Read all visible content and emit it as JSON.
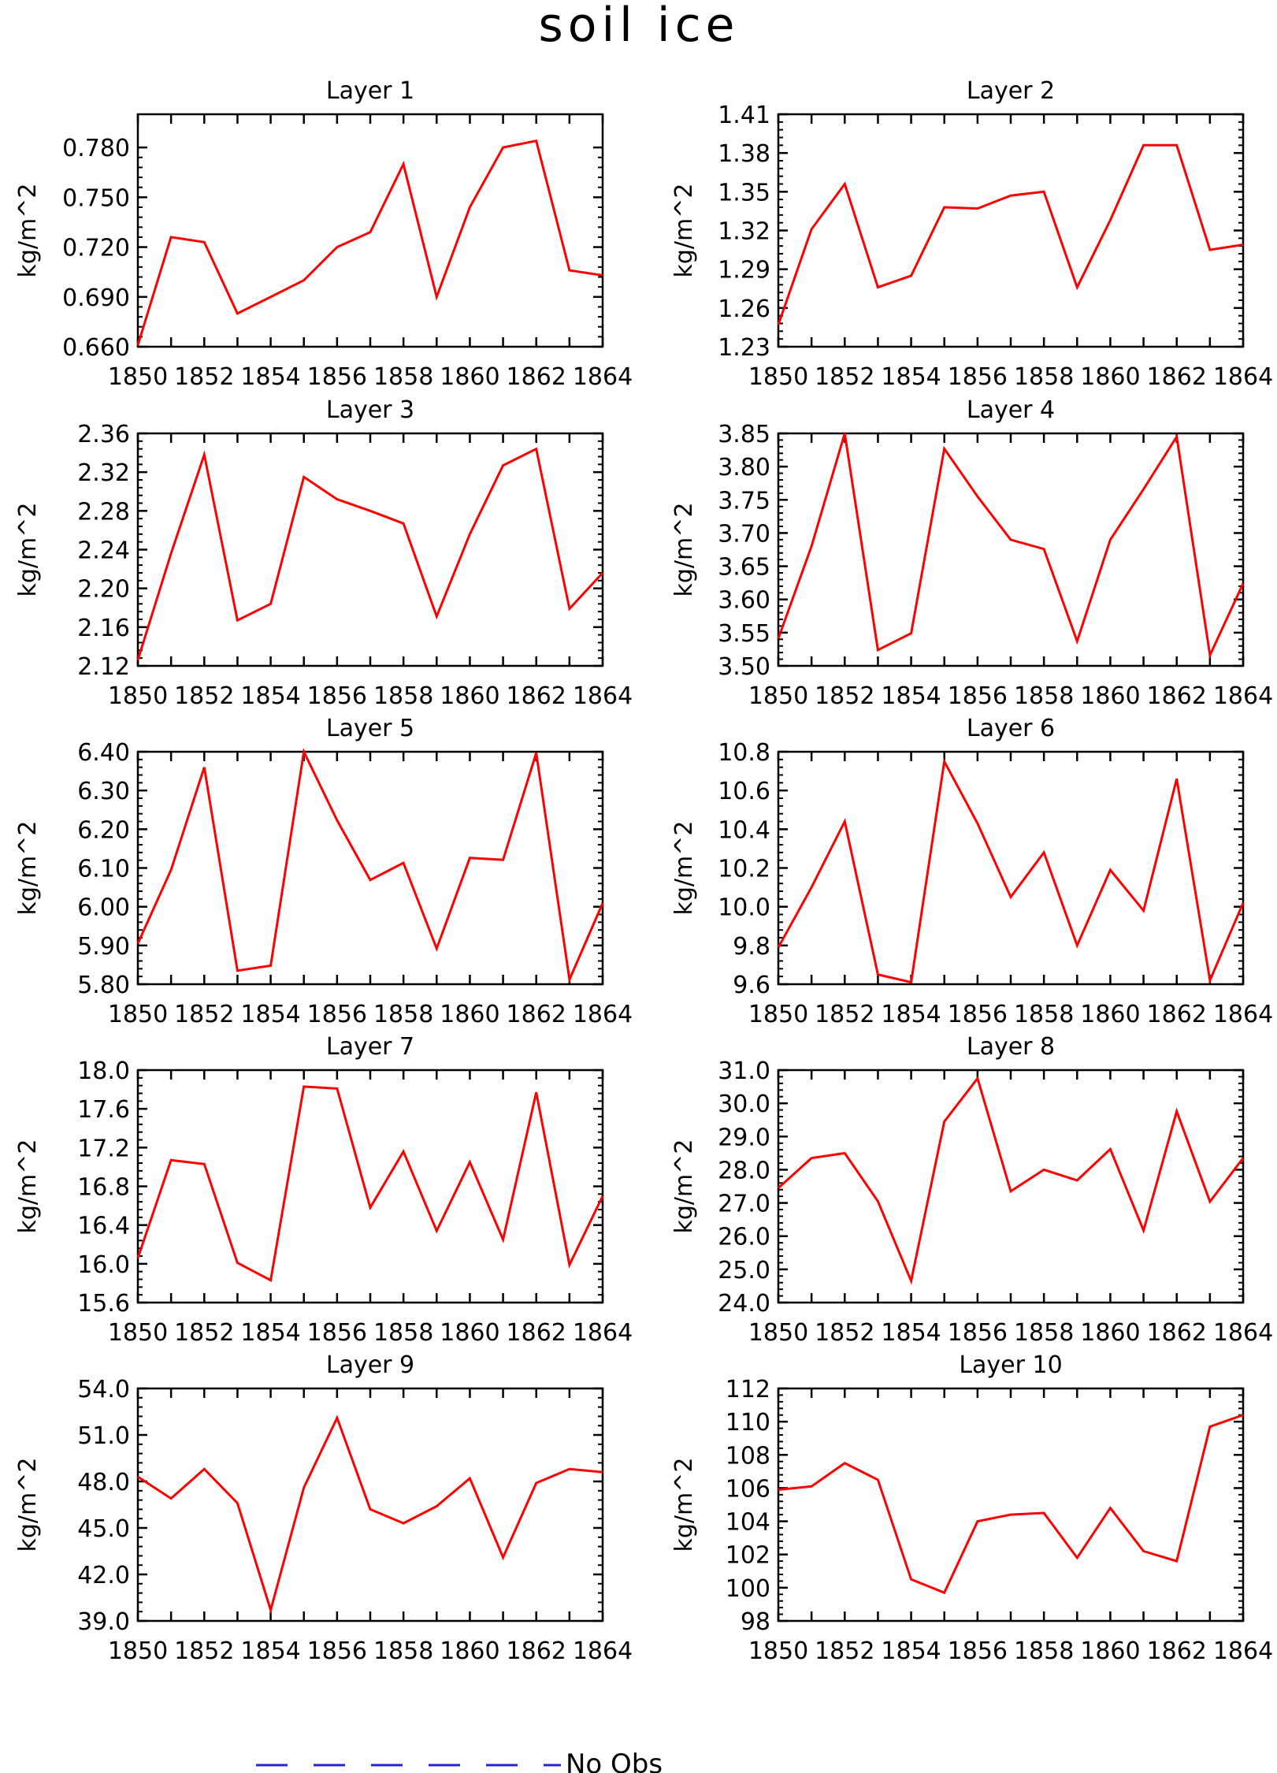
{
  "figure": {
    "title": "soil ice",
    "legend_label": "No Obs",
    "line_color": "#ff0000",
    "legend_color": "#2222dd"
  },
  "chart_data": [
    {
      "type": "line",
      "title": "Layer 1",
      "ylabel": "kg/m^2",
      "xlim": [
        1850,
        1864
      ],
      "ylim": [
        0.66,
        0.8
      ],
      "xticks": [
        "1850",
        "1852",
        "1854",
        "1856",
        "1858",
        "1860",
        "1862",
        "1864"
      ],
      "yticks": [
        "0.660",
        "0.690",
        "0.720",
        "0.750",
        "0.780"
      ],
      "x": [
        1850,
        1851,
        1852,
        1853,
        1854,
        1855,
        1856,
        1857,
        1858,
        1859,
        1860,
        1861,
        1862,
        1863,
        1864
      ],
      "values": [
        0.661,
        0.726,
        0.723,
        0.68,
        0.69,
        0.7,
        0.72,
        0.729,
        0.77,
        0.69,
        0.744,
        0.78,
        0.784,
        0.706,
        0.703
      ]
    },
    {
      "type": "line",
      "title": "Layer 2",
      "ylabel": "kg/m^2",
      "xlim": [
        1850,
        1864
      ],
      "ylim": [
        1.23,
        1.41
      ],
      "xticks": [
        "1850",
        "1852",
        "1854",
        "1856",
        "1858",
        "1860",
        "1862",
        "1864"
      ],
      "yticks": [
        "1.23",
        "1.26",
        "1.29",
        "1.32",
        "1.35",
        "1.38",
        "1.41"
      ],
      "x": [
        1850,
        1851,
        1852,
        1853,
        1854,
        1855,
        1856,
        1857,
        1858,
        1859,
        1860,
        1861,
        1862,
        1863,
        1864
      ],
      "values": [
        1.247,
        1.321,
        1.356,
        1.276,
        1.285,
        1.338,
        1.337,
        1.347,
        1.35,
        1.276,
        1.328,
        1.386,
        1.386,
        1.305,
        1.309
      ]
    },
    {
      "type": "line",
      "title": "Layer 3",
      "ylabel": "kg/m^2",
      "xlim": [
        1850,
        1864
      ],
      "ylim": [
        2.12,
        2.36
      ],
      "xticks": [
        "1850",
        "1852",
        "1854",
        "1856",
        "1858",
        "1860",
        "1862",
        "1864"
      ],
      "yticks": [
        "2.12",
        "2.16",
        "2.20",
        "2.24",
        "2.28",
        "2.32",
        "2.36"
      ],
      "x": [
        1850,
        1851,
        1852,
        1853,
        1854,
        1855,
        1856,
        1857,
        1858,
        1859,
        1860,
        1861,
        1862,
        1863,
        1864
      ],
      "values": [
        2.126,
        2.236,
        2.338,
        2.167,
        2.184,
        2.315,
        2.292,
        2.28,
        2.267,
        2.171,
        2.256,
        2.327,
        2.344,
        2.179,
        2.216
      ]
    },
    {
      "type": "line",
      "title": "Layer 4",
      "ylabel": "kg/m^2",
      "xlim": [
        1850,
        1864
      ],
      "ylim": [
        3.5,
        3.85
      ],
      "xticks": [
        "1850",
        "1852",
        "1854",
        "1856",
        "1858",
        "1860",
        "1862",
        "1864"
      ],
      "yticks": [
        "3.50",
        "3.55",
        "3.60",
        "3.65",
        "3.70",
        "3.75",
        "3.80",
        "3.85"
      ],
      "x": [
        1850,
        1851,
        1852,
        1853,
        1854,
        1855,
        1856,
        1857,
        1858,
        1859,
        1860,
        1861,
        1862,
        1863,
        1864
      ],
      "values": [
        3.541,
        3.68,
        3.85,
        3.524,
        3.549,
        3.827,
        3.755,
        3.69,
        3.676,
        3.537,
        3.69,
        3.766,
        3.845,
        3.516,
        3.624
      ]
    },
    {
      "type": "line",
      "title": "Layer 5",
      "ylabel": "kg/m^2",
      "xlim": [
        1850,
        1864
      ],
      "ylim": [
        5.8,
        6.4
      ],
      "xticks": [
        "1850",
        "1852",
        "1854",
        "1856",
        "1858",
        "1860",
        "1862",
        "1864"
      ],
      "yticks": [
        "5.80",
        "5.90",
        "6.00",
        "6.10",
        "6.20",
        "6.30",
        "6.40"
      ],
      "x": [
        1850,
        1851,
        1852,
        1853,
        1854,
        1855,
        1856,
        1857,
        1858,
        1859,
        1860,
        1861,
        1862,
        1863,
        1864
      ],
      "values": [
        5.905,
        6.095,
        6.36,
        5.835,
        5.848,
        6.4,
        6.223,
        6.069,
        6.113,
        5.892,
        6.126,
        6.121,
        6.397,
        5.812,
        6.009
      ]
    },
    {
      "type": "line",
      "title": "Layer 6",
      "ylabel": "kg/m^2",
      "xlim": [
        1850,
        1864
      ],
      "ylim": [
        9.6,
        10.8
      ],
      "xticks": [
        "1850",
        "1852",
        "1854",
        "1856",
        "1858",
        "1860",
        "1862",
        "1864"
      ],
      "yticks": [
        "9.6",
        "9.8",
        "10.0",
        "10.2",
        "10.4",
        "10.6",
        "10.8"
      ],
      "x": [
        1850,
        1851,
        1852,
        1853,
        1854,
        1855,
        1856,
        1857,
        1858,
        1859,
        1860,
        1861,
        1862,
        1863,
        1864
      ],
      "values": [
        9.79,
        10.1,
        10.44,
        9.65,
        9.61,
        10.75,
        10.43,
        10.05,
        10.28,
        9.8,
        10.19,
        9.98,
        10.66,
        9.62,
        10.02
      ]
    },
    {
      "type": "line",
      "title": "Layer 7",
      "ylabel": "kg/m^2",
      "xlim": [
        1850,
        1864
      ],
      "ylim": [
        15.6,
        18.0
      ],
      "xticks": [
        "1850",
        "1852",
        "1854",
        "1856",
        "1858",
        "1860",
        "1862",
        "1864"
      ],
      "yticks": [
        "15.6",
        "16.0",
        "16.4",
        "16.8",
        "17.2",
        "17.6",
        "18.0"
      ],
      "x": [
        1850,
        1851,
        1852,
        1853,
        1854,
        1855,
        1856,
        1857,
        1858,
        1859,
        1860,
        1861,
        1862,
        1863,
        1864
      ],
      "values": [
        16.06,
        17.07,
        17.03,
        16.01,
        15.83,
        17.83,
        17.81,
        16.58,
        17.16,
        16.34,
        17.05,
        16.25,
        17.77,
        15.99,
        16.7
      ]
    },
    {
      "type": "line",
      "title": "Layer 8",
      "ylabel": "kg/m^2",
      "xlim": [
        1850,
        1864
      ],
      "ylim": [
        24.0,
        31.0
      ],
      "xticks": [
        "1850",
        "1852",
        "1854",
        "1856",
        "1858",
        "1860",
        "1862",
        "1864"
      ],
      "yticks": [
        "24.0",
        "25.0",
        "26.0",
        "27.0",
        "28.0",
        "29.0",
        "30.0",
        "31.0"
      ],
      "x": [
        1850,
        1851,
        1852,
        1853,
        1854,
        1855,
        1856,
        1857,
        1858,
        1859,
        1860,
        1861,
        1862,
        1863,
        1864
      ],
      "values": [
        27.45,
        28.35,
        28.5,
        27.05,
        24.65,
        29.45,
        30.75,
        27.35,
        28.0,
        27.68,
        28.62,
        26.17,
        29.76,
        27.04,
        28.35
      ]
    },
    {
      "type": "line",
      "title": "Layer 9",
      "ylabel": "kg/m^2",
      "xlim": [
        1850,
        1864
      ],
      "ylim": [
        39.0,
        54.0
      ],
      "xticks": [
        "1850",
        "1852",
        "1854",
        "1856",
        "1858",
        "1860",
        "1862",
        "1864"
      ],
      "yticks": [
        "39.0",
        "42.0",
        "45.0",
        "48.0",
        "51.0",
        "54.0"
      ],
      "x": [
        1850,
        1851,
        1852,
        1853,
        1854,
        1855,
        1856,
        1857,
        1858,
        1859,
        1860,
        1861,
        1862,
        1863,
        1864
      ],
      "values": [
        48.3,
        46.9,
        48.8,
        46.6,
        39.7,
        47.6,
        52.1,
        46.2,
        45.3,
        46.4,
        48.2,
        43.1,
        47.9,
        48.8,
        48.6
      ]
    },
    {
      "type": "line",
      "title": "Layer 10",
      "ylabel": "kg/m^2",
      "xlim": [
        1850,
        1864
      ],
      "ylim": [
        98,
        112
      ],
      "xticks": [
        "1850",
        "1852",
        "1854",
        "1856",
        "1858",
        "1860",
        "1862",
        "1864"
      ],
      "yticks": [
        "98",
        "100",
        "102",
        "104",
        "106",
        "108",
        "110",
        "112"
      ],
      "x": [
        1850,
        1851,
        1852,
        1853,
        1854,
        1855,
        1856,
        1857,
        1858,
        1859,
        1860,
        1861,
        1862,
        1863,
        1864
      ],
      "values": [
        105.9,
        106.1,
        107.5,
        106.5,
        100.5,
        99.7,
        104.0,
        104.4,
        104.5,
        101.8,
        104.8,
        102.2,
        101.6,
        109.7,
        110.4
      ]
    }
  ]
}
